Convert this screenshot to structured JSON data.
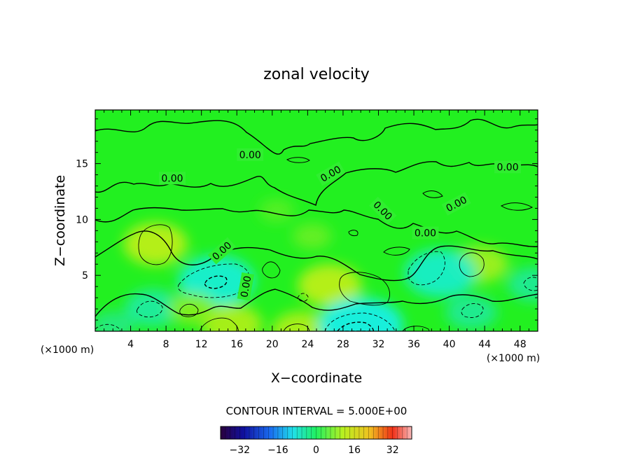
{
  "chart_data": {
    "type": "heatmap",
    "title": "zonal velocity",
    "xlabel": "X−coordinate",
    "ylabel": "Z−coordinate",
    "x_unit_label": "(×1000 m)",
    "xlim": [
      0,
      50
    ],
    "ylim": [
      0,
      19.8
    ],
    "xticks": [
      4,
      8,
      12,
      16,
      20,
      24,
      28,
      32,
      36,
      40,
      44,
      48
    ],
    "yticks": [
      5,
      10,
      15
    ],
    "contour_interval_label": "CONTOUR INTERVAL = 5.000E+00",
    "contour_labels": [
      {
        "text": "0.00",
        "x": 17.5,
        "y": 15.8,
        "rotation": 0
      },
      {
        "text": "0.00",
        "x": 8.7,
        "y": 13.7,
        "rotation": 0
      },
      {
        "text": "0.00",
        "x": 26.6,
        "y": 14.1,
        "rotation": -30
      },
      {
        "text": "0.00",
        "x": 46.6,
        "y": 14.7,
        "rotation": 0
      },
      {
        "text": "0.00",
        "x": 32.5,
        "y": 10.8,
        "rotation": 45
      },
      {
        "text": "0.00",
        "x": 40.8,
        "y": 11.4,
        "rotation": -28
      },
      {
        "text": "0.00",
        "x": 37.3,
        "y": 8.8,
        "rotation": 0
      },
      {
        "text": "0.00",
        "x": 14.3,
        "y": 7.2,
        "rotation": -42
      },
      {
        "text": "0.00",
        "x": 17.0,
        "y": 4.0,
        "rotation": -80
      }
    ],
    "colorbar": {
      "ticks": [
        -32,
        -16,
        0,
        16,
        32
      ],
      "tick_labels": [
        "−32",
        "−16",
        "0",
        "16",
        "32"
      ],
      "range": [
        -40,
        40
      ]
    },
    "features": [
      {
        "x": 6.8,
        "y": 7.8,
        "value": 9
      },
      {
        "x": 26.5,
        "y": 4.1,
        "value": 9
      },
      {
        "x": 43.5,
        "y": 6.0,
        "value": 7
      },
      {
        "x": 15.5,
        "y": 0.6,
        "value": 8
      },
      {
        "x": 23.3,
        "y": 0.0,
        "value": 8
      },
      {
        "x": 30.0,
        "y": 0.5,
        "value": -14
      },
      {
        "x": 13.7,
        "y": 4.5,
        "value": -12
      },
      {
        "x": 39.0,
        "y": 5.2,
        "value": -11
      },
      {
        "x": 6.5,
        "y": 2.1,
        "value": -7
      },
      {
        "x": 42.5,
        "y": 1.7,
        "value": -6
      },
      {
        "x": 49.5,
        "y": 4.2,
        "value": -6
      },
      {
        "x": 11.0,
        "y": 2.0,
        "value": 5
      },
      {
        "x": 2.0,
        "y": 0.5,
        "value": -4
      },
      {
        "x": 20.5,
        "y": 10.8,
        "value": 2
      },
      {
        "x": 24.5,
        "y": 8.5,
        "value": 3
      }
    ]
  }
}
